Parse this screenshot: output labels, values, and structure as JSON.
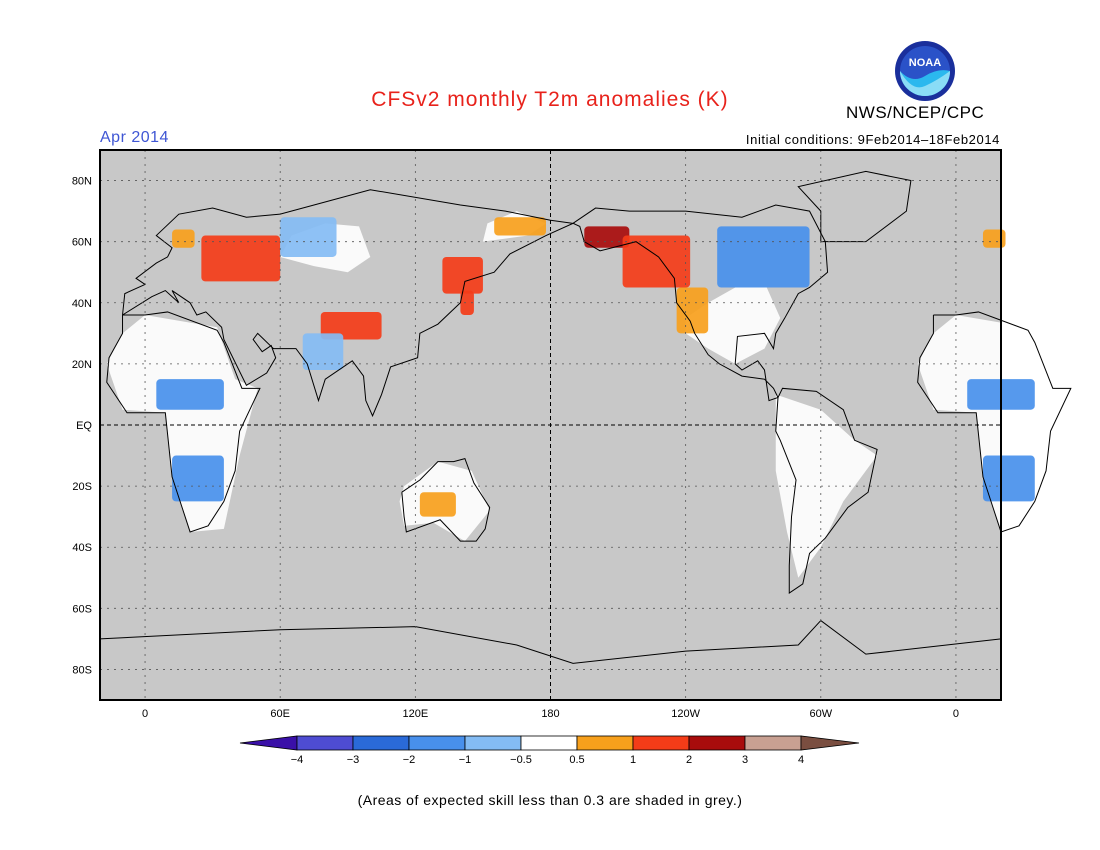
{
  "title": "CFSv2 monthly T2m anomalies (K)",
  "org": "NWS/NCEP/CPC",
  "logo_text": "NOAA",
  "period": "Apr 2014",
  "initial_conditions": "Initial conditions: 9Feb2014–18Feb2014",
  "footer": "(Areas of expected skill less than 0.3 are shaded in grey.)",
  "colors": {
    "land_no_skill": "#c8c8c8",
    "ocean": "#c8c8c8",
    "near_normal": "#ffffff",
    "title": "#e8221b",
    "period": "#3f56d4"
  },
  "map": {
    "projection": "equirectangular, centered 180",
    "lon_range": [
      -20,
      380
    ],
    "lat_range": [
      -90,
      90
    ],
    "lat_labels": [
      {
        "lat": 80,
        "label": "80N"
      },
      {
        "lat": 60,
        "label": "60N"
      },
      {
        "lat": 40,
        "label": "40N"
      },
      {
        "lat": 20,
        "label": "20N"
      },
      {
        "lat": 0,
        "label": "EQ"
      },
      {
        "lat": -20,
        "label": "20S"
      },
      {
        "lat": -40,
        "label": "40S"
      },
      {
        "lat": -60,
        "label": "60S"
      },
      {
        "lat": -80,
        "label": "80S"
      }
    ],
    "lon_labels": [
      {
        "lon": 0,
        "label": "0"
      },
      {
        "lon": 60,
        "label": "60E"
      },
      {
        "lon": 120,
        "label": "120E"
      },
      {
        "lon": 180,
        "label": "180"
      },
      {
        "lon": 240,
        "label": "120W"
      },
      {
        "lon": 300,
        "label": "60W"
      },
      {
        "lon": 360,
        "label": "0"
      }
    ],
    "dashed_lines": {
      "equator_lat": 0,
      "dateline_lon": 180
    }
  },
  "colorbar": {
    "ticks": [
      "−4",
      "−3",
      "−2",
      "−1",
      "−0.5",
      "0.5",
      "1",
      "2",
      "3",
      "4"
    ],
    "colors": [
      "#3a10a8",
      "#4e4cd2",
      "#2a6ad8",
      "#4890ec",
      "#84bcf4",
      "#ffffff",
      "#f7a01c",
      "#f43c18",
      "#a80c0c",
      "#c8a092",
      "#7a4e40"
    ]
  },
  "anomaly_regions": [
    {
      "region": "Eastern Europe / western Russia",
      "lon": [
        25,
        60
      ],
      "lat": [
        47,
        62
      ],
      "value": 1.5
    },
    {
      "region": "Scandinavia coast",
      "lon": [
        12,
        22
      ],
      "lat": [
        58,
        64
      ],
      "value": 0.7
    },
    {
      "region": "Northeast Siberia",
      "lon": [
        155,
        178
      ],
      "lat": [
        62,
        68
      ],
      "value": 0.8
    },
    {
      "region": "Eastern Siberia / Okhotsk",
      "lon": [
        132,
        150
      ],
      "lat": [
        43,
        55
      ],
      "value": 1.2
    },
    {
      "region": "Northern Japan",
      "lon": [
        140,
        146
      ],
      "lat": [
        36,
        44
      ],
      "value": 1.5
    },
    {
      "region": "Tibetan Plateau",
      "lon": [
        78,
        105
      ],
      "lat": [
        28,
        37
      ],
      "value": 1.2
    },
    {
      "region": "Alaska",
      "lon": [
        195,
        215
      ],
      "lat": [
        58,
        65
      ],
      "value": 2.5
    },
    {
      "region": "Western Canada / Pacific NW",
      "lon": [
        212,
        242
      ],
      "lat": [
        45,
        62
      ],
      "value": 1.5
    },
    {
      "region": "Western US",
      "lon": [
        236,
        250
      ],
      "lat": [
        30,
        45
      ],
      "value": 0.7
    },
    {
      "region": "Northwest Australia",
      "lon": [
        122,
        138
      ],
      "lat": [
        -30,
        -22
      ],
      "value": 0.7
    },
    {
      "region": "Central/eastern Canada",
      "lon": [
        254,
        295
      ],
      "lat": [
        45,
        65
      ],
      "value": -1.5
    },
    {
      "region": "Western Siberia",
      "lon": [
        60,
        85
      ],
      "lat": [
        55,
        68
      ],
      "value": -0.7
    },
    {
      "region": "Sahel",
      "lon": [
        5,
        35
      ],
      "lat": [
        5,
        15
      ],
      "value": -1.2
    },
    {
      "region": "Southern Africa",
      "lon": [
        12,
        35
      ],
      "lat": [
        -25,
        -10
      ],
      "value": -1.3
    },
    {
      "region": "India",
      "lon": [
        70,
        88
      ],
      "lat": [
        18,
        30
      ],
      "value": -1.0
    }
  ]
}
